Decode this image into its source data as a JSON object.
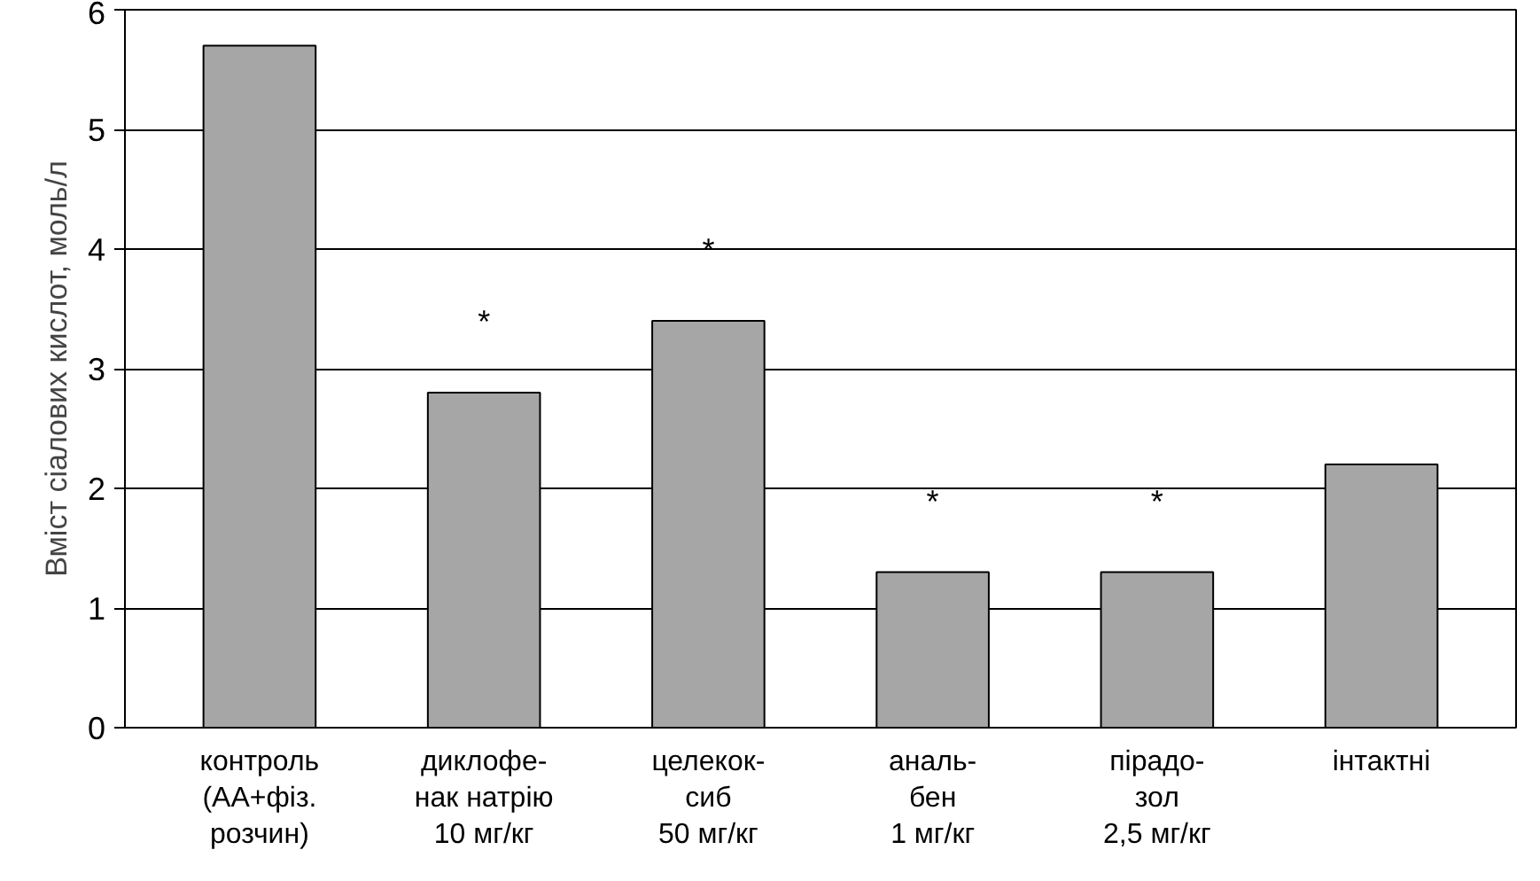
{
  "chart_data": {
    "type": "bar",
    "categories": [
      "контроль\n(АА+фіз.\nрозчин)",
      "диклофе-\nнак натрію\n10 мг/кг",
      "целекок-\nсиб\n50 мг/кг",
      "аналь-\nбен\n1 мг/кг",
      "пірадо-\nзол\n2,5 мг/кг",
      "інтактні"
    ],
    "values": [
      5.7,
      2.8,
      3.4,
      1.3,
      1.3,
      2.2
    ],
    "color": "#a6a6a6",
    "ylabel": "Вміст сіалових кислот, моль/л",
    "ylim": [
      0,
      6
    ],
    "yticks": [
      0,
      1,
      2,
      3,
      4,
      5,
      6
    ],
    "grid": "y",
    "annotations": [
      {
        "text": "*",
        "x": "диклофе-\nнак натрію\n10 мг/кг",
        "y": 2.8
      },
      {
        "text": "*",
        "x": "целекок-\nсиб\n50 мг/кг",
        "y": 3.4
      },
      {
        "text": "*",
        "x": "аналь-\nбен\n1 мг/кг",
        "y": 1.3
      },
      {
        "text": "*",
        "x": "пірадо-\nзол\n2,5 мг/кг",
        "y": 1.3
      }
    ]
  }
}
